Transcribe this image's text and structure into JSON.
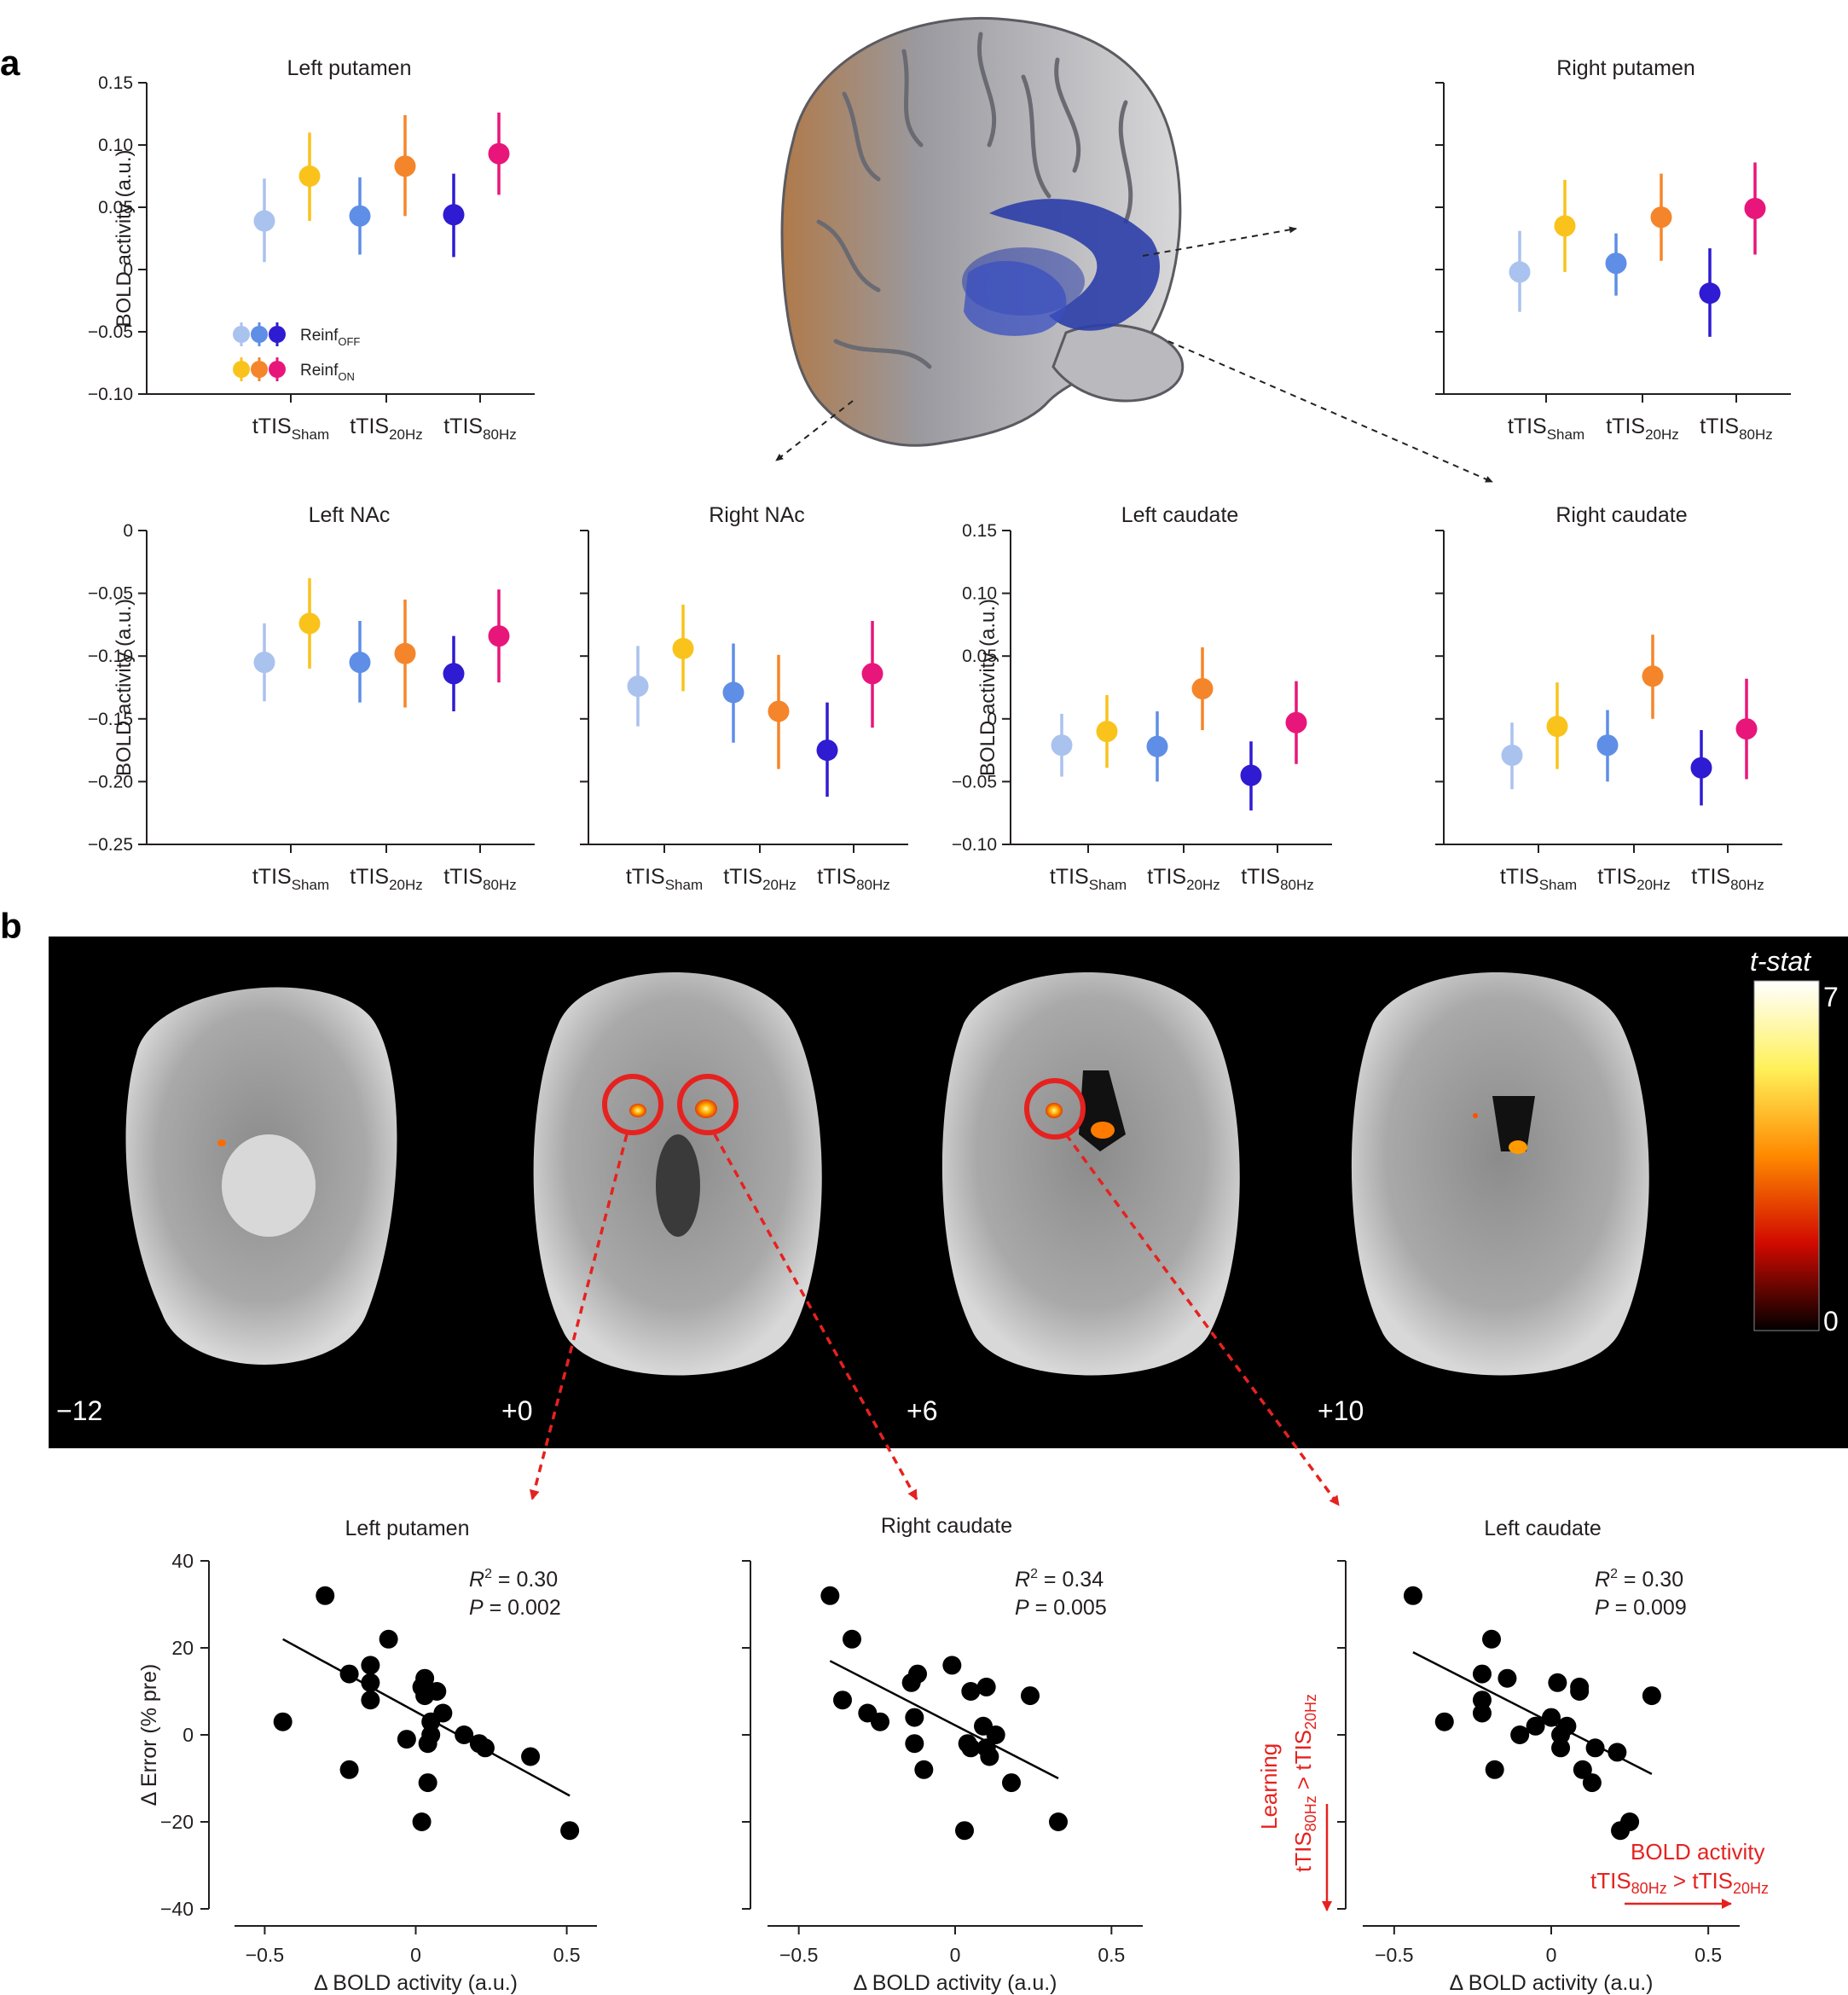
{
  "panels": {
    "a": "a",
    "b": "b"
  },
  "colors": {
    "sham_off": "#aac2ee",
    "sham_on": "#f9c31c",
    "hz20_off": "#5f8ee6",
    "hz20_on": "#f5852a",
    "hz80_off": "#2f1bd1",
    "hz80_on": "#e8167a",
    "scatter": "#000000",
    "annotation": "#e5221f",
    "brain_roi": "#2c3ea8"
  },
  "condition_labels": [
    {
      "base": "tTIS",
      "sub": "Sham"
    },
    {
      "base": "tTIS",
      "sub": "20Hz"
    },
    {
      "base": "tTIS",
      "sub": "80Hz"
    }
  ],
  "legend": {
    "off": {
      "base": "Reinf",
      "sub": "OFF"
    },
    "on": {
      "base": "Reinf",
      "sub": "ON"
    }
  },
  "brain_slices": {
    "labels": [
      "−12",
      "+0",
      "+6",
      "+10"
    ],
    "colorbar": {
      "title": "t-stat",
      "max": "7",
      "min": "0"
    }
  },
  "annotations": {
    "learning": "Learning",
    "learning_cond": {
      "a": "tTIS",
      "a_sub": "80Hz",
      "op": " > ",
      "b": "tTIS",
      "b_sub": "20Hz"
    },
    "bold": "BOLD activity",
    "bold_cond": {
      "a": "tTIS",
      "a_sub": "80Hz",
      "op": " > ",
      "b": "tTIS",
      "b_sub": "20Hz"
    }
  },
  "chart_data": [
    {
      "id": "left-putamen",
      "type": "scatter",
      "title": "Left putamen",
      "ylabel": "BOLD activity (a.u.)",
      "ylim": [
        -0.1,
        0.15
      ],
      "yticks": [
        -0.1,
        -0.05,
        0,
        0.05,
        0.1,
        0.15
      ],
      "ytick_labels": [
        "−0.10",
        "−0.05",
        "0",
        "0.05",
        "0.10",
        "0.15"
      ],
      "series": [
        {
          "name": "Reinf OFF",
          "condition": [
            "Sham",
            "20Hz",
            "80Hz"
          ],
          "mean": [
            0.039,
            0.043,
            0.044
          ],
          "ci_low": [
            0.006,
            0.012,
            0.01
          ],
          "ci_high": [
            0.073,
            0.074,
            0.077
          ]
        },
        {
          "name": "Reinf ON",
          "condition": [
            "Sham",
            "20Hz",
            "80Hz"
          ],
          "mean": [
            0.075,
            0.083,
            0.093
          ],
          "ci_low": [
            0.039,
            0.043,
            0.06
          ],
          "ci_high": [
            0.11,
            0.124,
            0.126
          ]
        }
      ]
    },
    {
      "id": "right-putamen",
      "type": "scatter",
      "title": "Right putamen",
      "ylabel": "",
      "ylim": [
        -0.1,
        0.15
      ],
      "yticks": [
        -0.1,
        -0.05,
        0,
        0.05,
        0.1,
        0.15
      ],
      "ytick_labels": [],
      "series": [
        {
          "name": "Reinf OFF",
          "condition": [
            "Sham",
            "20Hz",
            "80Hz"
          ],
          "mean": [
            -0.002,
            0.005,
            -0.019
          ],
          "ci_low": [
            -0.034,
            -0.021,
            -0.054
          ],
          "ci_high": [
            0.031,
            0.029,
            0.017
          ]
        },
        {
          "name": "Reinf ON",
          "condition": [
            "Sham",
            "20Hz",
            "80Hz"
          ],
          "mean": [
            0.035,
            0.042,
            0.049
          ],
          "ci_low": [
            -0.002,
            0.007,
            0.012
          ],
          "ci_high": [
            0.072,
            0.077,
            0.086
          ]
        }
      ]
    },
    {
      "id": "left-nac",
      "type": "scatter",
      "title": "Left NAc",
      "ylabel": "BOLD activity (a.u.)",
      "ylim": [
        -0.25,
        0
      ],
      "yticks": [
        -0.25,
        -0.2,
        -0.15,
        -0.1,
        -0.05,
        0
      ],
      "ytick_labels": [
        "−0.25",
        "−0.20",
        "−0.15",
        "−0.10",
        "−0.05",
        "0"
      ],
      "series": [
        {
          "name": "Reinf OFF",
          "condition": [
            "Sham",
            "20Hz",
            "80Hz"
          ],
          "mean": [
            -0.105,
            -0.105,
            -0.114
          ],
          "ci_low": [
            -0.136,
            -0.137,
            -0.144
          ],
          "ci_high": [
            -0.074,
            -0.072,
            -0.084
          ]
        },
        {
          "name": "Reinf ON",
          "condition": [
            "Sham",
            "20Hz",
            "80Hz"
          ],
          "mean": [
            -0.074,
            -0.098,
            -0.084
          ],
          "ci_low": [
            -0.11,
            -0.141,
            -0.121
          ],
          "ci_high": [
            -0.038,
            -0.055,
            -0.047
          ]
        }
      ]
    },
    {
      "id": "right-nac",
      "type": "scatter",
      "title": "Right NAc",
      "ylabel": "",
      "ylim": [
        -0.25,
        0
      ],
      "yticks": [
        -0.25,
        -0.2,
        -0.15,
        -0.1,
        -0.05,
        0
      ],
      "ytick_labels": [],
      "series": [
        {
          "name": "Reinf OFF",
          "condition": [
            "Sham",
            "20Hz",
            "80Hz"
          ],
          "mean": [
            -0.124,
            -0.129,
            -0.175
          ],
          "ci_low": [
            -0.156,
            -0.169,
            -0.212
          ],
          "ci_high": [
            -0.092,
            -0.09,
            -0.137
          ]
        },
        {
          "name": "Reinf ON",
          "condition": [
            "Sham",
            "20Hz",
            "80Hz"
          ],
          "mean": [
            -0.094,
            -0.144,
            -0.114
          ],
          "ci_low": [
            -0.128,
            -0.19,
            -0.157
          ],
          "ci_high": [
            -0.059,
            -0.099,
            -0.072
          ]
        }
      ]
    },
    {
      "id": "left-caudate",
      "type": "scatter",
      "title": "Left caudate",
      "ylabel": "BOLD activity (a.u.)",
      "ylim": [
        -0.1,
        0.15
      ],
      "yticks": [
        -0.1,
        -0.05,
        0,
        0.05,
        0.1,
        0.15
      ],
      "ytick_labels": [
        "−0.10",
        "−0.05",
        "0",
        "0.05",
        "0.10",
        "0.15"
      ],
      "series": [
        {
          "name": "Reinf OFF",
          "condition": [
            "Sham",
            "20Hz",
            "80Hz"
          ],
          "mean": [
            -0.021,
            -0.022,
            -0.045
          ],
          "ci_low": [
            -0.046,
            -0.05,
            -0.073
          ],
          "ci_high": [
            0.004,
            0.006,
            -0.018
          ]
        },
        {
          "name": "Reinf ON",
          "condition": [
            "Sham",
            "20Hz",
            "80Hz"
          ],
          "mean": [
            -0.01,
            0.024,
            -0.003
          ],
          "ci_low": [
            -0.039,
            -0.009,
            -0.036
          ],
          "ci_high": [
            0.019,
            0.057,
            0.03
          ]
        }
      ]
    },
    {
      "id": "right-caudate",
      "type": "scatter",
      "title": "Right caudate",
      "ylabel": "",
      "ylim": [
        -0.1,
        0.15
      ],
      "yticks": [
        -0.1,
        -0.05,
        0,
        0.05,
        0.1,
        0.15
      ],
      "ytick_labels": [],
      "series": [
        {
          "name": "Reinf OFF",
          "condition": [
            "Sham",
            "20Hz",
            "80Hz"
          ],
          "mean": [
            -0.029,
            -0.021,
            -0.039
          ],
          "ci_low": [
            -0.056,
            -0.05,
            -0.069
          ],
          "ci_high": [
            -0.003,
            0.007,
            -0.009
          ]
        },
        {
          "name": "Reinf ON",
          "condition": [
            "Sham",
            "20Hz",
            "80Hz"
          ],
          "mean": [
            -0.006,
            0.034,
            -0.008
          ],
          "ci_low": [
            -0.04,
            0.0,
            -0.048
          ],
          "ci_high": [
            0.029,
            0.067,
            0.032
          ]
        }
      ]
    },
    {
      "id": "scatter-left-putamen",
      "type": "scatter",
      "title": "Left putamen",
      "xlabel": "Δ BOLD activity (a.u.)",
      "ylabel": "Δ Error (% pre)",
      "xlim": [
        -0.6,
        0.6
      ],
      "ylim": [
        -40,
        40
      ],
      "xticks": [
        -0.5,
        0,
        0.5
      ],
      "xtick_labels": [
        "−0.5",
        "0",
        "0.5"
      ],
      "yticks": [
        -40,
        -20,
        0,
        20,
        40
      ],
      "ytick_labels": [
        "−40",
        "−20",
        "0",
        "20",
        "40"
      ],
      "stats": {
        "r2_prefix": "R",
        "r2_sup": "2",
        "r2_value": " = 0.30",
        "p_prefix": "P",
        "p_value": " = 0.002"
      },
      "fit": {
        "x": [
          -0.44,
          0.51
        ],
        "y": [
          22,
          -14
        ]
      },
      "points": [
        [
          -0.3,
          32
        ],
        [
          -0.09,
          22
        ],
        [
          -0.44,
          3
        ],
        [
          -0.22,
          14
        ],
        [
          -0.15,
          16
        ],
        [
          -0.15,
          12
        ],
        [
          -0.15,
          8
        ],
        [
          -0.22,
          -8
        ],
        [
          -0.03,
          -1
        ],
        [
          0.02,
          11
        ],
        [
          0.03,
          13
        ],
        [
          0.03,
          9
        ],
        [
          0.07,
          10
        ],
        [
          0.05,
          3
        ],
        [
          0.09,
          5
        ],
        [
          0.05,
          0
        ],
        [
          0.04,
          -2
        ],
        [
          0.16,
          0
        ],
        [
          0.21,
          -2
        ],
        [
          0.23,
          -3
        ],
        [
          0.38,
          -5
        ],
        [
          0.04,
          -11
        ],
        [
          0.02,
          -20
        ],
        [
          0.51,
          -22
        ]
      ]
    },
    {
      "id": "scatter-right-caudate",
      "type": "scatter",
      "title": "Right caudate",
      "xlabel": "Δ BOLD activity (a.u.)",
      "ylabel": "",
      "xlim": [
        -0.6,
        0.6
      ],
      "ylim": [
        -40,
        40
      ],
      "xticks": [
        -0.5,
        0,
        0.5
      ],
      "xtick_labels": [
        "−0.5",
        "0",
        "0.5"
      ],
      "yticks": [
        -40,
        -20,
        0,
        20,
        40
      ],
      "ytick_labels": [],
      "stats": {
        "r2_prefix": "R",
        "r2_sup": "2",
        "r2_value": " = 0.34",
        "p_prefix": "P",
        "p_value": " = 0.005"
      },
      "fit": {
        "x": [
          -0.4,
          0.33
        ],
        "y": [
          17,
          -10
        ]
      },
      "points": [
        [
          -0.4,
          32
        ],
        [
          -0.33,
          22
        ],
        [
          -0.36,
          8
        ],
        [
          -0.28,
          5
        ],
        [
          -0.24,
          3
        ],
        [
          -0.14,
          12
        ],
        [
          -0.12,
          14
        ],
        [
          -0.13,
          4
        ],
        [
          -0.13,
          -2
        ],
        [
          -0.1,
          -8
        ],
        [
          -0.01,
          16
        ],
        [
          0.05,
          10
        ],
        [
          0.1,
          11
        ],
        [
          0.09,
          2
        ],
        [
          0.13,
          0
        ],
        [
          0.1,
          -3
        ],
        [
          0.04,
          -2
        ],
        [
          0.05,
          -3
        ],
        [
          0.11,
          -5
        ],
        [
          0.18,
          -11
        ],
        [
          0.24,
          9
        ],
        [
          0.03,
          -22
        ],
        [
          0.33,
          -20
        ]
      ]
    },
    {
      "id": "scatter-left-caudate",
      "type": "scatter",
      "title": "Left caudate",
      "xlabel": "Δ BOLD activity (a.u.)",
      "ylabel": "",
      "xlim": [
        -0.6,
        0.6
      ],
      "ylim": [
        -40,
        40
      ],
      "xticks": [
        -0.5,
        0,
        0.5
      ],
      "xtick_labels": [
        "−0.5",
        "0",
        "0.5"
      ],
      "yticks": [
        -40,
        -20,
        0,
        20,
        40
      ],
      "ytick_labels": [],
      "stats": {
        "r2_prefix": "R",
        "r2_sup": "2",
        "r2_value": " = 0.30",
        "p_prefix": "P",
        "p_value": " = 0.009"
      },
      "fit": {
        "x": [
          -0.44,
          0.32
        ],
        "y": [
          19,
          -9
        ]
      },
      "points": [
        [
          -0.44,
          32
        ],
        [
          -0.19,
          22
        ],
        [
          -0.34,
          3
        ],
        [
          -0.22,
          14
        ],
        [
          -0.22,
          8
        ],
        [
          -0.22,
          5
        ],
        [
          -0.14,
          13
        ],
        [
          -0.1,
          0
        ],
        [
          -0.18,
          -8
        ],
        [
          -0.05,
          2
        ],
        [
          0.0,
          4
        ],
        [
          0.02,
          12
        ],
        [
          0.03,
          0
        ],
        [
          0.05,
          2
        ],
        [
          0.03,
          -3
        ],
        [
          0.09,
          10
        ],
        [
          0.09,
          11
        ],
        [
          0.1,
          -8
        ],
        [
          0.14,
          -3
        ],
        [
          0.13,
          -11
        ],
        [
          0.21,
          -4
        ],
        [
          0.25,
          -20
        ],
        [
          0.32,
          9
        ],
        [
          0.22,
          -22
        ]
      ]
    }
  ]
}
